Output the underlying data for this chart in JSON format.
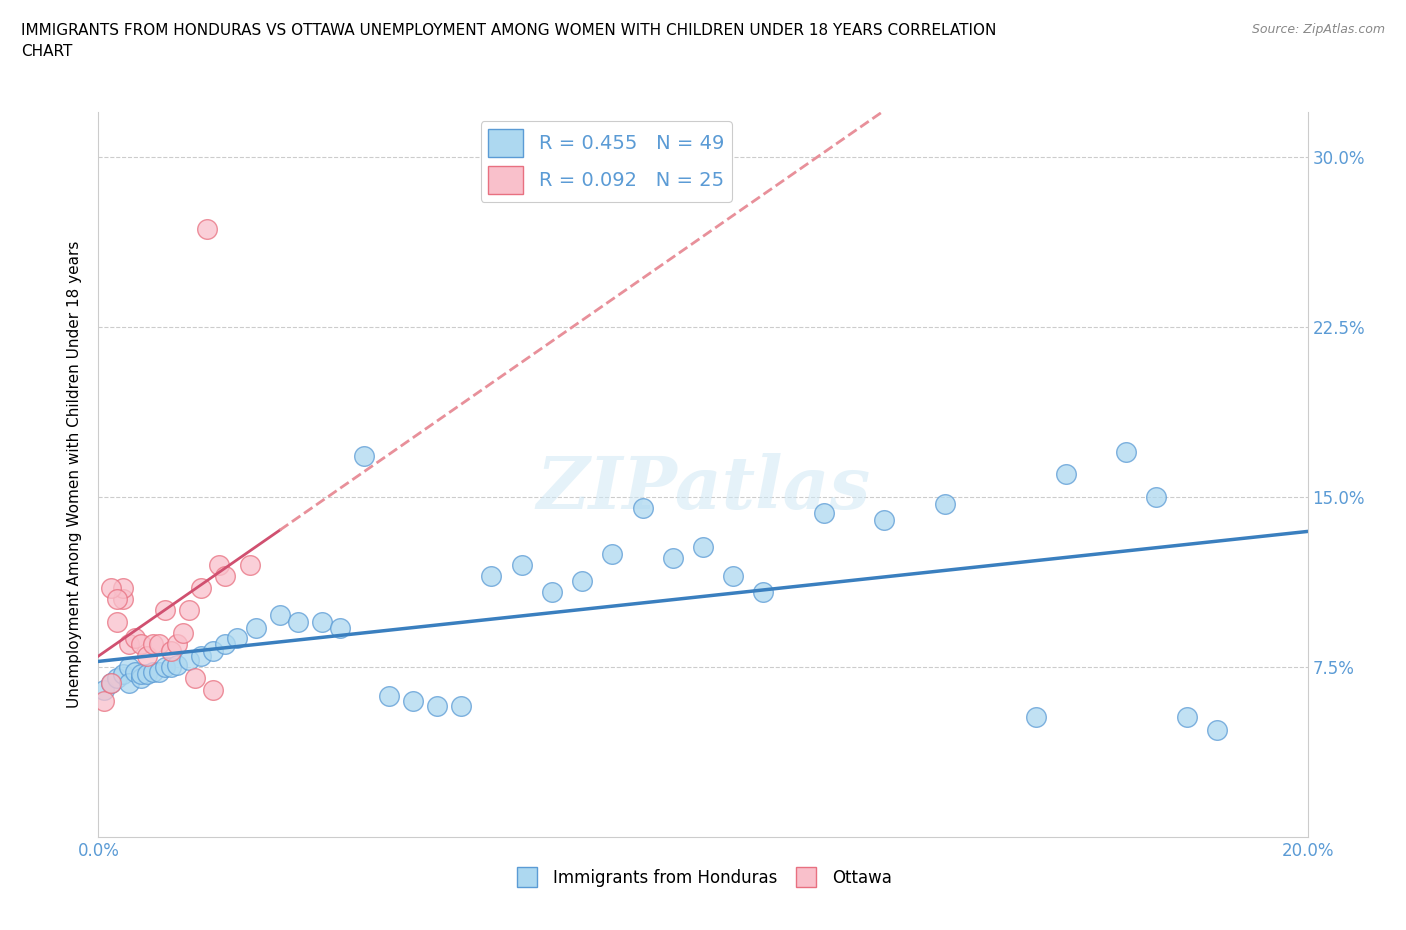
{
  "title": "IMMIGRANTS FROM HONDURAS VS OTTAWA UNEMPLOYMENT AMONG WOMEN WITH CHILDREN UNDER 18 YEARS CORRELATION\nCHART",
  "source": "Source: ZipAtlas.com",
  "ylabel": "Unemployment Among Women with Children Under 18 years",
  "xlim": [
    0.0,
    0.2
  ],
  "ylim": [
    0.0,
    0.32
  ],
  "xticks": [
    0.0,
    0.025,
    0.05,
    0.075,
    0.1,
    0.125,
    0.15,
    0.175,
    0.2
  ],
  "xticklabels": [
    "0.0%",
    "",
    "",
    "",
    "",
    "",
    "",
    "",
    "20.0%"
  ],
  "ytick_positions": [
    0.075,
    0.15,
    0.225,
    0.3
  ],
  "ytick_labels": [
    "7.5%",
    "15.0%",
    "22.5%",
    "30.0%"
  ],
  "hlines": [
    0.075,
    0.15,
    0.225,
    0.3
  ],
  "legend_r1": "R = 0.455",
  "legend_n1": "N = 49",
  "legend_r2": "R = 0.092",
  "legend_n2": "N = 25",
  "color_blue": "#ADD8F0",
  "color_pink": "#F9C0CB",
  "edge_blue": "#5B9BD5",
  "edge_pink": "#E87080",
  "line_blue": "#3A7FBF",
  "line_pink": "#D05070",
  "line_pink_dashed": "#E8909A",
  "watermark_text": "ZIPatlas",
  "blue_scatter_x": [
    0.001,
    0.002,
    0.003,
    0.004,
    0.005,
    0.005,
    0.006,
    0.007,
    0.007,
    0.008,
    0.009,
    0.01,
    0.011,
    0.012,
    0.013,
    0.015,
    0.017,
    0.019,
    0.021,
    0.023,
    0.026,
    0.03,
    0.033,
    0.037,
    0.04,
    0.044,
    0.048,
    0.052,
    0.056,
    0.06,
    0.065,
    0.07,
    0.075,
    0.08,
    0.085,
    0.09,
    0.095,
    0.1,
    0.105,
    0.11,
    0.12,
    0.13,
    0.14,
    0.155,
    0.16,
    0.17,
    0.175,
    0.18,
    0.185
  ],
  "blue_scatter_y": [
    0.065,
    0.068,
    0.07,
    0.072,
    0.075,
    0.068,
    0.073,
    0.07,
    0.072,
    0.072,
    0.073,
    0.073,
    0.075,
    0.075,
    0.076,
    0.078,
    0.08,
    0.082,
    0.085,
    0.088,
    0.092,
    0.098,
    0.095,
    0.095,
    0.092,
    0.168,
    0.062,
    0.06,
    0.058,
    0.058,
    0.115,
    0.12,
    0.108,
    0.113,
    0.125,
    0.145,
    0.123,
    0.128,
    0.115,
    0.108,
    0.143,
    0.14,
    0.147,
    0.053,
    0.16,
    0.17,
    0.15,
    0.053,
    0.047
  ],
  "pink_scatter_x": [
    0.001,
    0.002,
    0.003,
    0.004,
    0.004,
    0.005,
    0.006,
    0.007,
    0.008,
    0.009,
    0.01,
    0.011,
    0.012,
    0.013,
    0.014,
    0.015,
    0.016,
    0.017,
    0.018,
    0.019,
    0.02,
    0.021,
    0.025,
    0.002,
    0.003
  ],
  "pink_scatter_y": [
    0.06,
    0.068,
    0.095,
    0.105,
    0.11,
    0.085,
    0.088,
    0.085,
    0.08,
    0.085,
    0.085,
    0.1,
    0.082,
    0.085,
    0.09,
    0.1,
    0.07,
    0.11,
    0.268,
    0.065,
    0.12,
    0.115,
    0.12,
    0.11,
    0.105
  ]
}
